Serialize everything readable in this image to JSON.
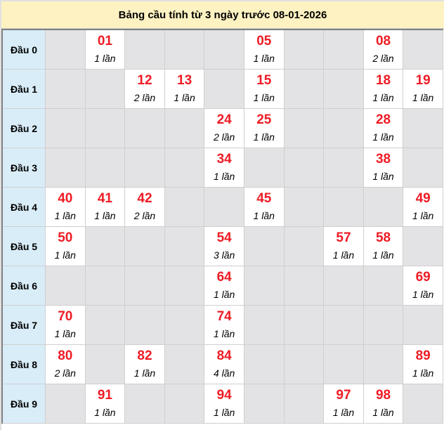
{
  "title": "Bảng cầu tính từ 3 ngày trước 08-01-2026",
  "colors": {
    "number": "#ee1c25",
    "label_bg": "#d9edf8",
    "empty_bg": "#e3e3e5",
    "hit_bg": "#ffffff",
    "title_bg": "#fff2c2"
  },
  "rows": [
    {
      "label": "Đầu 0",
      "cells": [
        null,
        {
          "num": "01",
          "count": "1 lần"
        },
        null,
        null,
        null,
        {
          "num": "05",
          "count": "1 lần"
        },
        null,
        null,
        {
          "num": "08",
          "count": "2 lần"
        },
        null
      ]
    },
    {
      "label": "Đầu 1",
      "cells": [
        null,
        null,
        {
          "num": "12",
          "count": "2 lần"
        },
        {
          "num": "13",
          "count": "1 lần"
        },
        null,
        {
          "num": "15",
          "count": "1 lần"
        },
        null,
        null,
        {
          "num": "18",
          "count": "1 lần"
        },
        {
          "num": "19",
          "count": "1 lần"
        }
      ]
    },
    {
      "label": "Đầu 2",
      "cells": [
        null,
        null,
        null,
        null,
        {
          "num": "24",
          "count": "2 lần"
        },
        {
          "num": "25",
          "count": "1 lần"
        },
        null,
        null,
        {
          "num": "28",
          "count": "1 lần"
        },
        null
      ]
    },
    {
      "label": "Đầu 3",
      "cells": [
        null,
        null,
        null,
        null,
        {
          "num": "34",
          "count": "1 lần"
        },
        null,
        null,
        null,
        {
          "num": "38",
          "count": "1 lần"
        },
        null
      ]
    },
    {
      "label": "Đầu 4",
      "cells": [
        {
          "num": "40",
          "count": "1 lần"
        },
        {
          "num": "41",
          "count": "1 lần"
        },
        {
          "num": "42",
          "count": "2 lần"
        },
        null,
        null,
        {
          "num": "45",
          "count": "1 lần"
        },
        null,
        null,
        null,
        {
          "num": "49",
          "count": "1 lần"
        }
      ]
    },
    {
      "label": "Đầu 5",
      "cells": [
        {
          "num": "50",
          "count": "1 lần"
        },
        null,
        null,
        null,
        {
          "num": "54",
          "count": "3 lần"
        },
        null,
        null,
        {
          "num": "57",
          "count": "1 lần"
        },
        {
          "num": "58",
          "count": "1 lần"
        },
        null
      ]
    },
    {
      "label": "Đầu 6",
      "cells": [
        null,
        null,
        null,
        null,
        {
          "num": "64",
          "count": "1 lần"
        },
        null,
        null,
        null,
        null,
        {
          "num": "69",
          "count": "1 lần"
        }
      ]
    },
    {
      "label": "Đầu 7",
      "cells": [
        {
          "num": "70",
          "count": "1 lần"
        },
        null,
        null,
        null,
        {
          "num": "74",
          "count": "1 lần"
        },
        null,
        null,
        null,
        null,
        null
      ]
    },
    {
      "label": "Đầu 8",
      "cells": [
        {
          "num": "80",
          "count": "2 lần"
        },
        null,
        {
          "num": "82",
          "count": "1 lần"
        },
        null,
        {
          "num": "84",
          "count": "4 lần"
        },
        null,
        null,
        null,
        null,
        {
          "num": "89",
          "count": "1 lần"
        }
      ]
    },
    {
      "label": "Đầu 9",
      "cells": [
        null,
        {
          "num": "91",
          "count": "1 lần"
        },
        null,
        null,
        {
          "num": "94",
          "count": "1 lần"
        },
        null,
        null,
        {
          "num": "97",
          "count": "1 lần"
        },
        {
          "num": "98",
          "count": "1 lần"
        },
        null
      ]
    }
  ]
}
